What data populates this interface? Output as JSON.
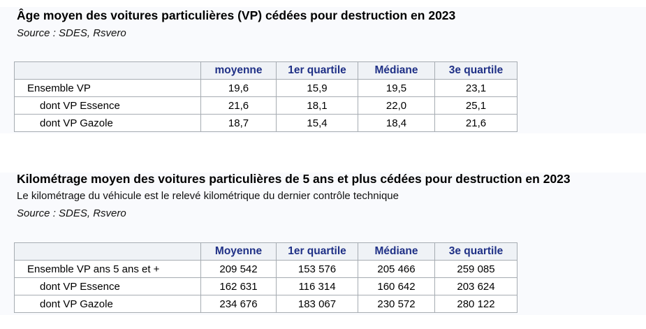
{
  "colors": {
    "header_text": "#1f3086",
    "header_bg": "#eff2f6",
    "border": "#a6acb2",
    "band_bg": "#f9fafd",
    "cell_bg": "#ffffff"
  },
  "chart_data": [
    {
      "type": "table",
      "title": "Âge moyen des voitures particulières (VP) cédées pour destruction en 2023",
      "source": "Source : SDES, Rsvero",
      "columns": [
        "",
        "moyenne",
        "1er quartile",
        "Médiane",
        "3e quartile"
      ],
      "rows": [
        {
          "label": "Ensemble VP",
          "values": [
            "19,6",
            "15,9",
            "19,5",
            "23,1"
          ]
        },
        {
          "label": "dont VP Essence",
          "values": [
            "21,6",
            "18,1",
            "22,0",
            "25,1"
          ]
        },
        {
          "label": "dont VP Gazole",
          "values": [
            "18,7",
            "15,4",
            "18,4",
            "21,6"
          ]
        }
      ]
    },
    {
      "type": "table",
      "title": "Kilométrage moyen des voitures particulières de 5 ans et plus cédées pour destruction en 2023",
      "subtitle": "Le kilométrage du véhicule est le relevé kilométrique du dernier contrôle technique",
      "source": "Source : SDES, Rsvero",
      "columns": [
        "",
        "Moyenne",
        "1er quartile",
        "Médiane",
        "3e quartile"
      ],
      "rows": [
        {
          "label": "Ensemble VP ans 5 ans et +",
          "values": [
            "209 542",
            "153 576",
            "205 466",
            "259 085"
          ]
        },
        {
          "label": "dont VP Essence",
          "values": [
            "162 631",
            "116 314",
            "160 642",
            "203 624"
          ]
        },
        {
          "label": "dont VP Gazole",
          "values": [
            "234 676",
            "183 067",
            "230 572",
            "280 122"
          ]
        }
      ]
    }
  ]
}
